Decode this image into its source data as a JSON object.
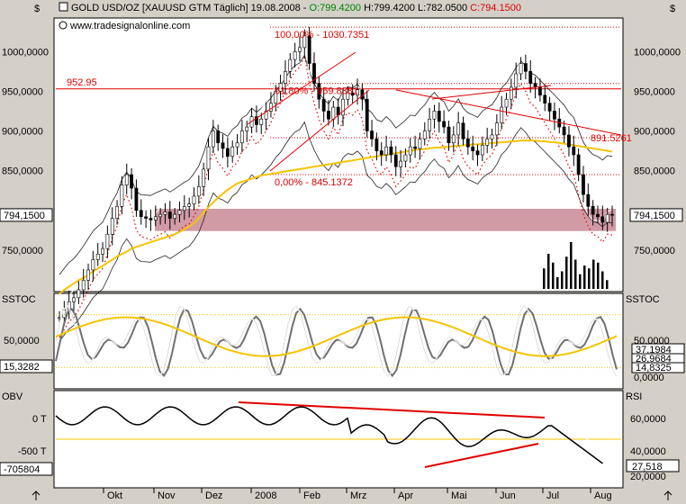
{
  "header": {
    "currency": "$",
    "currency_right": "$",
    "title_prefix": "GOLD USD/OZ [XAUUSD GTM  Täglich] 19.08.2008 - ",
    "open": "O:799.4200",
    "high": "H:799.4200",
    "low": "L:782.0500",
    "close": "C:794.1500",
    "watermark": "www.tradesignalonline.com"
  },
  "colors": {
    "bg": "#d4d0c8",
    "panel": "#ffffff",
    "price": "#000000",
    "ma_yellow": "#f5c400",
    "red": "#e00000",
    "zone": "#c98a96",
    "gray": "#707070",
    "green_text": "#008000"
  },
  "chart_data": [
    {
      "type": "line",
      "panel": "price",
      "ylim": [
        700,
        1040
      ],
      "y_ticks": [
        "1000,0000",
        "950,0000",
        "900,0000",
        "850,0000",
        "750,0000"
      ],
      "y_ticks_right": [
        "1000,0000",
        "950,0000",
        "900,0000",
        "850,0000",
        "750,0000"
      ],
      "last_price_label": "794,1500",
      "x_tick_labels": [
        "Okt",
        "Nov",
        "Dez",
        "2008",
        "Feb",
        "Mrz",
        "Apr",
        "Mai",
        "Jun",
        "Jul",
        "Aug"
      ],
      "annotations": {
        "level_line": "952.95",
        "fib_100": "100,00% - 1030.7351",
        "fib_61": "61,80% - 959.8381",
        "fib_0": "0,00% - 845.1372",
        "fib_right": "891.5261"
      },
      "fib_levels": [
        1030.7351,
        959.8381,
        891.5261,
        845.1372
      ],
      "horizontal_level": 952.95,
      "support_zone": [
        774,
        802
      ],
      "series": [
        {
          "values": [
            665,
            675,
            685,
            690,
            700,
            712,
            725,
            738,
            745,
            752,
            770,
            790,
            805,
            832,
            845,
            828,
            800,
            792,
            790,
            788,
            792,
            795,
            798,
            790,
            795,
            800,
            805,
            808,
            818,
            830,
            852,
            880,
            900,
            885,
            878,
            868,
            880,
            885,
            900,
            905,
            918,
            908,
            915,
            925,
            935,
            950,
            960,
            975,
            990,
            1000,
            1005,
            1020,
            985,
            960,
            940,
            925,
            915,
            930,
            920,
            940,
            948,
            945,
            952,
            940,
            900,
            890,
            875,
            870,
            880,
            870,
            855,
            862,
            870,
            880,
            878,
            890,
            900,
            915,
            925,
            912,
            905,
            885,
            895,
            910,
            890,
            880,
            875,
            870,
            882,
            890,
            895,
            910,
            930,
            940,
            955,
            972,
            985,
            975,
            960,
            955,
            945,
            935,
            925,
            915,
            905,
            895,
            880,
            870,
            845,
            820,
            805,
            795,
            792,
            785,
            795,
            794
          ]
        },
        {
          "values": [
            695,
            700,
            704,
            708,
            712,
            715,
            719,
            723,
            727,
            730,
            734,
            738,
            742,
            745,
            748,
            752,
            754,
            756,
            758,
            760,
            762,
            764,
            766,
            768,
            770,
            773,
            776,
            780,
            784,
            790,
            797,
            804,
            810,
            816,
            821,
            826,
            830,
            834,
            836,
            838,
            840,
            842,
            844,
            845,
            846,
            847,
            848,
            849,
            850,
            851,
            852,
            853,
            854,
            855,
            856,
            857,
            858,
            859,
            860,
            861,
            862,
            863,
            864,
            865,
            866,
            867,
            868,
            869,
            870,
            871,
            872,
            873,
            874,
            875,
            876,
            877,
            877,
            878,
            879,
            879,
            880,
            880,
            881,
            881,
            882,
            882,
            883,
            883,
            884,
            884,
            885,
            885,
            886,
            886,
            887,
            887,
            888,
            888,
            888,
            888,
            887,
            887,
            886,
            886,
            885,
            884,
            883,
            882,
            881,
            880,
            879,
            878,
            877,
            876,
            875,
            874
          ]
        }
      ]
    },
    {
      "type": "line",
      "panel": "stochastic",
      "title": "SSTOC",
      "title_right": "SSTOC",
      "ylim": [
        0,
        100
      ],
      "y_ticks": [
        "50,0000"
      ],
      "y_ticks_right": [
        "50,0000",
        "0,0000"
      ],
      "readouts": [
        "37,1984",
        "26,9684",
        "14,8325"
      ],
      "left_readout": "15,3282"
    },
    {
      "type": "line",
      "panel": "obv_rsi",
      "title": "OBV",
      "title_right": "RSI",
      "y_ticks": [
        "0 T",
        "-500 T",
        "-705804"
      ],
      "y_ticks_right": [
        "60,0000",
        "40,0000",
        "20,0000"
      ],
      "readout": "27,518"
    }
  ]
}
